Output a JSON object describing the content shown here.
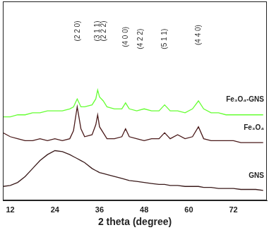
{
  "chart_data": {
    "type": "line",
    "x_label": "2 theta (degree)",
    "x": [
      10,
      12,
      14,
      16,
      18,
      20,
      22,
      24,
      26,
      28,
      29,
      30,
      31,
      32,
      34,
      35,
      35.5,
      36,
      37,
      38,
      40,
      42,
      43,
      44,
      46,
      48,
      50,
      52,
      53.5,
      55,
      57,
      59,
      61,
      62.6,
      64,
      66,
      68,
      70,
      72,
      74,
      76,
      78,
      80
    ],
    "series": [
      {
        "name": "Fe₃O₄-GNS",
        "color": "#66ff33",
        "values": [
          42,
          42,
          43,
          43,
          44,
          44,
          45,
          45,
          45,
          46,
          47,
          51,
          47,
          47,
          48,
          51,
          55.5,
          52,
          50,
          47,
          46,
          46,
          49,
          46,
          45,
          46,
          45,
          45,
          48,
          45,
          45,
          44,
          46,
          50,
          46,
          44,
          44,
          43,
          43,
          43,
          43,
          43,
          43
        ]
      },
      {
        "name": "Fe₃O₄",
        "color": "#4a1a1a",
        "values": [
          34,
          32,
          31,
          30,
          30,
          31,
          30,
          31,
          30,
          31,
          35,
          47,
          36,
          32,
          33,
          38,
          43,
          37,
          34,
          31,
          31,
          32,
          36,
          32,
          31,
          30,
          31,
          31,
          34,
          31,
          33,
          31,
          32,
          37,
          31,
          30,
          30,
          30,
          30,
          29,
          29,
          29,
          29
        ]
      },
      {
        "name": "GNS",
        "color": "#3a1a1a",
        "values": [
          7,
          7.5,
          9,
          12,
          16,
          20,
          23,
          25,
          24.5,
          23,
          22,
          21,
          20,
          19,
          16,
          15,
          14.5,
          14,
          13.5,
          13,
          12,
          11,
          10.5,
          10,
          9.5,
          9,
          8.5,
          8,
          8,
          7.5,
          7.5,
          7,
          7,
          7,
          6.5,
          6.5,
          6,
          6,
          6,
          5.5,
          5.5,
          5.5,
          5
        ]
      }
    ],
    "annotations": [
      {
        "x": 30.1,
        "y": 80,
        "text": "(2 2 0)"
      },
      {
        "x": 35.5,
        "y": 80,
        "text": "(3 1 1)"
      },
      {
        "x": 37.2,
        "y": 80,
        "text": "(2 2 2)"
      },
      {
        "x": 43.1,
        "y": 77,
        "text": "(4 0 0)"
      },
      {
        "x": 47.0,
        "y": 76,
        "text": "(4 2 2)"
      },
      {
        "x": 53.5,
        "y": 76,
        "text": "(5 1 1)"
      },
      {
        "x": 62.6,
        "y": 78,
        "text": "(4 4 0)"
      }
    ],
    "xlim": [
      10,
      81
    ],
    "xticks": [
      12,
      24,
      36,
      48,
      60,
      72
    ],
    "ylim": [
      0,
      100
    ],
    "tick_labels": "x",
    "grid": false,
    "line_style": "solid"
  }
}
